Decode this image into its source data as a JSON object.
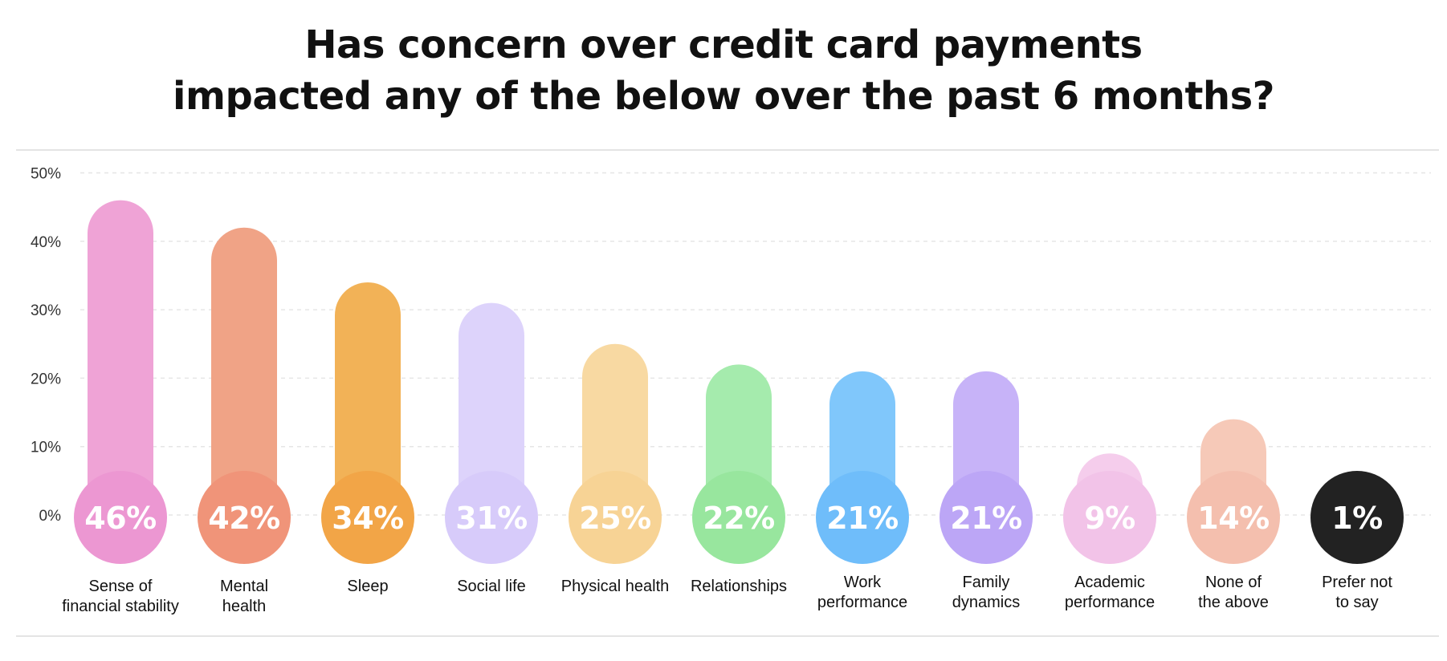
{
  "chart_data": {
    "type": "bar",
    "title_lines": [
      "Has concern over credit card payments",
      "impacted any of the below over the past 6 months?"
    ],
    "xlabel": "",
    "ylabel": "",
    "ylim": [
      0,
      50
    ],
    "yticks": [
      0,
      10,
      20,
      30,
      40,
      50
    ],
    "ytick_labels": [
      "0%",
      "10%",
      "20%",
      "30%",
      "40%",
      "50%"
    ],
    "grid": true,
    "categories": [
      [
        "Sense of",
        "financial stability"
      ],
      [
        "Mental",
        "health"
      ],
      [
        "Sleep"
      ],
      [
        "Social life"
      ],
      [
        "Physical health"
      ],
      [
        "Relationships"
      ],
      [
        "Work",
        "performance"
      ],
      [
        "Family",
        "dynamics"
      ],
      [
        "Academic",
        "performance"
      ],
      [
        "None of",
        "the above"
      ],
      [
        "Prefer not",
        "to say"
      ]
    ],
    "values": [
      46,
      42,
      34,
      31,
      25,
      22,
      21,
      21,
      9,
      14,
      1
    ],
    "value_labels": [
      "46%",
      "42%",
      "34%",
      "31%",
      "25%",
      "22%",
      "21%",
      "21%",
      "9%",
      "14%",
      "1%"
    ],
    "bar_colors": [
      "#efa3d6",
      "#f0a386",
      "#f2b257",
      "#ddd3fb",
      "#f8d9a2",
      "#a5ebad",
      "#80c7fb",
      "#c7b3f8",
      "#f5cdec",
      "#f6c9b8",
      "#222222"
    ],
    "circle_colors": [
      "#ec97d2",
      "#f09479",
      "#f2a547",
      "#d7cbfa",
      "#f7d395",
      "#98e69e",
      "#6fbdfa",
      "#bca6f6",
      "#f2c3e8",
      "#f4bfae",
      "#222222"
    ]
  }
}
